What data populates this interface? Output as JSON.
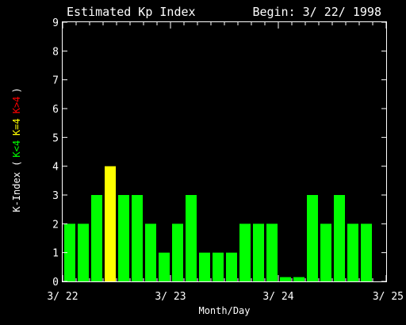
{
  "chart_data": {
    "type": "bar",
    "title": "Estimated Kp Index",
    "begin_label": "Begin: 3/ 22/ 1998",
    "xlabel": "Month/Day",
    "ylabel": {
      "prefix": "K-Index (",
      "low": "K<4",
      "mid": "K=4",
      "high": "K>4",
      "suffix": ")"
    },
    "ylim": [
      0,
      9
    ],
    "y_ticks": [
      "0",
      "1",
      "2",
      "3",
      "4",
      "5",
      "6",
      "7",
      "8",
      "9"
    ],
    "x_ticks": [
      {
        "label": "3/ 22",
        "day": 0
      },
      {
        "label": "3/ 23",
        "day": 1
      },
      {
        "label": "3/ 24",
        "day": 2
      },
      {
        "label": "3/ 25",
        "day": 3
      }
    ],
    "interval_hours": 3,
    "values": [
      2,
      2,
      3,
      4,
      3,
      3,
      2,
      1,
      2,
      3,
      1,
      1,
      1,
      2,
      2,
      2,
      0.15,
      0.15,
      3,
      2,
      3,
      2,
      2
    ],
    "colors": {
      "background": "#000000",
      "axes": "#ffffff",
      "text": "#ffffff",
      "low": "#00ff00",
      "mid": "#ffff00",
      "high": "#ff0000"
    }
  }
}
